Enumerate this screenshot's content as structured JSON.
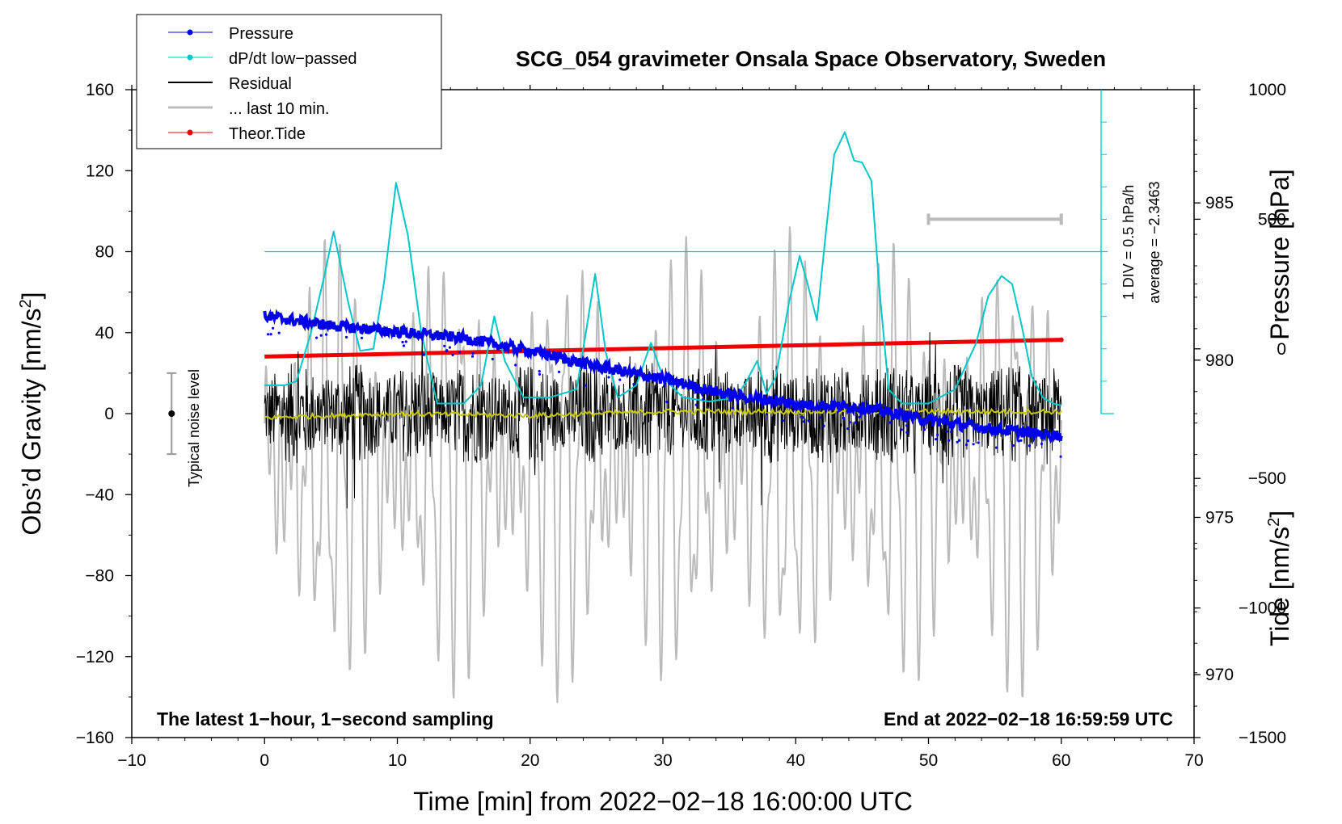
{
  "chart_data": {
    "type": "line",
    "title": "SCG_054 gravimeter Onsala Space Observatory, Sweden",
    "xlabel": "Time [min] from 2022−02−18 16:00:00 UTC",
    "ylabel_main": "Obs’d Gravity [nm/s²]",
    "ylabel_main_base": "Obs’d Gravity [nm/s",
    "ylabel_main_sup": "2",
    "ylabel_main_end": "]",
    "ylabel_pressure": "Pressure [hPa]",
    "ylabel_tide": "Tide [nm/s²]",
    "ylabel_tide_base": "Tide [nm/s",
    "ylabel_tide_sup": "2",
    "ylabel_tide_end": "]",
    "xlim": [
      -10,
      70
    ],
    "ylim": [
      -160,
      160
    ],
    "pressure_lim": [
      968,
      988.6
    ],
    "tide_lim": [
      -1500,
      1000
    ],
    "x_ticks": [
      -10,
      0,
      10,
      20,
      30,
      40,
      50,
      60,
      70
    ],
    "x_tick_labels": [
      "−10",
      "0",
      "10",
      "20",
      "30",
      "40",
      "50",
      "60",
      "70"
    ],
    "y_ticks": [
      -160,
      -120,
      -80,
      -40,
      0,
      40,
      80,
      120,
      160
    ],
    "y_tick_labels": [
      "−160",
      "−120",
      "−80",
      "−40",
      "0",
      "40",
      "80",
      "120",
      "160"
    ],
    "pressure_ticks": [
      970,
      975,
      980,
      985
    ],
    "pressure_tick_labels": [
      "970",
      "975",
      "980",
      "985"
    ],
    "tide_ticks": [
      -1500,
      -1000,
      -500,
      0,
      500,
      1000
    ],
    "tide_tick_labels": [
      "−1500",
      "−1000",
      "−500",
      "0",
      "500",
      "1000"
    ],
    "legend": {
      "position": "top-left",
      "entries": [
        {
          "label": "Pressure",
          "color": "#0000ee",
          "marker": true
        },
        {
          "label": "dP/dt low−passed",
          "color": "#00c8c8",
          "marker": true
        },
        {
          "label": "Residual",
          "color": "#000000",
          "marker": false
        },
        {
          "label": "... last 10 min.",
          "color": "#bbbbbb",
          "marker": false
        },
        {
          "label": "Theor.Tide",
          "color": "#ee0000",
          "marker": true
        }
      ]
    },
    "annotations": {
      "noise_label": "Typical noise level",
      "noise_level": 20,
      "scale_label": "1 DIV = 0.5 hPa/h",
      "average_label": "average = −2.3463",
      "left_note": "The latest 1−hour, 1−second sampling",
      "right_note": "End at 2022−02−18 16:59:59 UTC",
      "last10_bar": [
        50,
        60
      ]
    },
    "series": [
      {
        "name": "Pressure",
        "axis": "pressure",
        "x": [
          0,
          5,
          10,
          15,
          20,
          25,
          30,
          35,
          40,
          45,
          50,
          55,
          60
        ],
        "values": [
          981.4,
          981.1,
          980.9,
          980.7,
          980.3,
          979.8,
          979.4,
          978.9,
          978.6,
          978.5,
          978.1,
          977.8,
          977.6
        ]
      },
      {
        "name": "dP/dt low-passed",
        "axis": "gravity",
        "x": [
          0,
          1.5,
          2.4,
          3.5,
          4.5,
          5.2,
          6.3,
          7.2,
          8.2,
          9.0,
          9.9,
          10.8,
          11.8,
          13.0,
          15.0,
          16.3,
          17.3,
          18.1,
          19.5,
          21.5,
          23.5,
          24.2,
          24.9,
          25.7,
          26.6,
          28.0,
          29.1,
          30.0,
          31.5,
          33.5,
          35.5,
          36.3,
          37.1,
          37.8,
          38.5,
          39.5,
          40.3,
          40.9,
          41.6,
          42.2,
          42.9,
          43.7,
          44.4,
          45.0,
          45.7,
          46.3,
          47.0,
          48.0,
          50.0,
          52.0,
          53.6,
          54.5,
          55.5,
          56.3,
          57.0,
          57.8,
          58.6,
          59.4,
          60.0
        ],
        "values": [
          14,
          14,
          16,
          40,
          68,
          90,
          55,
          31,
          32,
          65,
          114,
          88,
          40,
          5,
          5,
          14,
          48,
          26,
          8,
          8,
          12,
          40,
          69,
          30,
          8,
          14,
          35,
          18,
          8,
          6,
          8,
          16,
          26,
          10,
          18,
          55,
          78,
          64,
          46,
          85,
          128,
          139,
          125,
          124,
          115,
          62,
          12,
          5,
          5,
          12,
          35,
          58,
          68,
          64,
          44,
          18,
          8,
          5,
          4
        ]
      },
      {
        "name": "Residual",
        "axis": "gravity",
        "x": [
          0,
          60
        ],
        "amplitude": 25
      },
      {
        "name": "Residual smoothed",
        "axis": "gravity",
        "x": [
          0,
          10,
          20,
          30,
          40,
          50,
          60
        ],
        "values": [
          -2,
          0,
          -1,
          1,
          1,
          1,
          1
        ]
      },
      {
        "name": "... last 10 min.",
        "axis": "tide",
        "x": [
          0,
          60
        ],
        "amplitude": 900
      },
      {
        "name": "Theor.Tide",
        "axis": "tide",
        "x": [
          0,
          60
        ],
        "values": [
          -30,
          35
        ]
      }
    ]
  }
}
